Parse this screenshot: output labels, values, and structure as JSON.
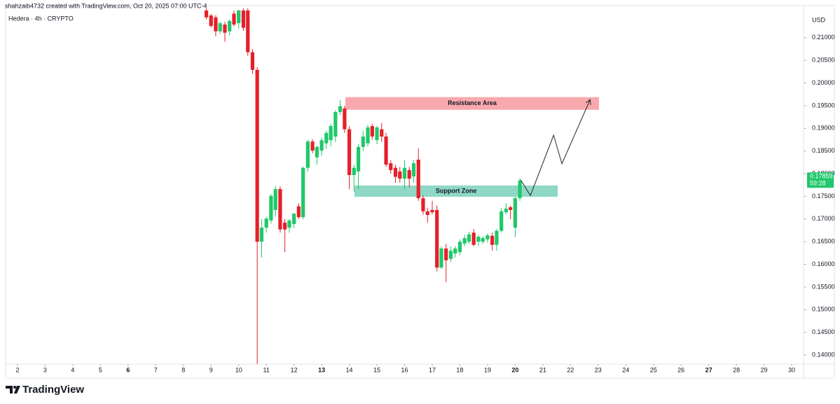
{
  "chart_data": {
    "type": "candlestick",
    "title": "shahzaib4732 created with TradingView.com, Oct 20, 2025 07:00 UTC-4",
    "subtitle": "Hedera · 4h · CRYPTO",
    "currency": "USD",
    "brand": "TradingView",
    "up_color": "#1fc86a",
    "down_color": "#e5202a",
    "x": [
      8.83,
      9.0,
      9.17,
      9.33,
      9.5,
      9.67,
      9.83,
      10.0,
      10.17,
      10.33,
      10.5,
      10.67,
      10.83,
      11.0,
      11.17,
      11.33,
      11.5,
      11.67,
      11.83,
      12.0,
      12.17,
      12.33,
      12.5,
      12.67,
      12.83,
      13.0,
      13.17,
      13.33,
      13.5,
      13.67,
      13.83,
      14.0,
      14.17,
      14.33,
      14.5,
      14.67,
      14.83,
      15.0,
      15.17,
      15.33,
      15.5,
      15.67,
      15.83,
      16.0,
      16.17,
      16.33,
      16.5,
      16.67,
      16.83,
      17.0,
      17.17,
      17.33,
      17.5,
      17.67,
      17.83,
      18.0,
      18.17,
      18.33,
      18.5,
      18.67,
      18.83,
      19.0,
      19.17,
      19.33,
      19.5,
      19.67,
      19.83,
      20.0,
      20.17
    ],
    "open": [
      0.216,
      0.2149,
      0.2145,
      0.2114,
      0.2129,
      0.2114,
      0.2153,
      0.2132,
      0.216,
      0.216,
      0.2068,
      0.2029,
      0.165,
      0.1681,
      0.1697,
      0.172,
      0.1766,
      0.1692,
      0.1681,
      0.1689,
      0.1728,
      0.1704,
      0.1813,
      0.1871,
      0.1836,
      0.1851,
      0.1867,
      0.1874,
      0.1882,
      0.1936,
      0.1944,
      0.1898,
      0.1797,
      0.1805,
      0.1859,
      0.1867,
      0.1905,
      0.1874,
      0.1898,
      0.1882,
      0.1823,
      0.1813,
      0.1805,
      0.1789,
      0.1808,
      0.1794,
      0.1831,
      0.1746,
      0.1717,
      0.172,
      0.172,
      0.1593,
      0.1635,
      0.1612,
      0.1624,
      0.1627,
      0.1646,
      0.165,
      0.167,
      0.165,
      0.165,
      0.1655,
      0.1663,
      0.1643,
      0.1674,
      0.1715,
      0.1726,
      0.1681,
      0.1746
    ],
    "high": [
      0.2165,
      0.2152,
      0.215,
      0.2135,
      0.2135,
      0.214,
      0.216,
      0.2162,
      0.2165,
      0.2165,
      0.2075,
      0.2035,
      0.17,
      0.1705,
      0.1755,
      0.1774,
      0.1772,
      0.17,
      0.17,
      0.1712,
      0.1735,
      0.1815,
      0.1875,
      0.1876,
      0.1862,
      0.188,
      0.1895,
      0.191,
      0.194,
      0.1962,
      0.195,
      0.1905,
      0.182,
      0.1865,
      0.1895,
      0.1908,
      0.191,
      0.1905,
      0.1912,
      0.189,
      0.183,
      0.182,
      0.1815,
      0.183,
      0.1815,
      0.183,
      0.1856,
      0.1752,
      0.1725,
      0.174,
      0.173,
      0.164,
      0.1645,
      0.164,
      0.164,
      0.1655,
      0.1665,
      0.1672,
      0.1678,
      0.1665,
      0.1662,
      0.1668,
      0.167,
      0.1678,
      0.1725,
      0.1735,
      0.173,
      0.175,
      0.179
    ],
    "low": [
      0.214,
      0.2122,
      0.2103,
      0.2108,
      0.2091,
      0.2105,
      0.2125,
      0.212,
      0.2115,
      0.206,
      0.202,
      0.138,
      0.1615,
      0.167,
      0.169,
      0.1705,
      0.167,
      0.1627,
      0.167,
      0.168,
      0.17,
      0.17,
      0.1805,
      0.1845,
      0.182,
      0.184,
      0.1855,
      0.186,
      0.187,
      0.193,
      0.189,
      0.1766,
      0.176,
      0.1766,
      0.185,
      0.186,
      0.1875,
      0.1865,
      0.187,
      0.1815,
      0.18,
      0.178,
      0.178,
      0.1765,
      0.177,
      0.178,
      0.174,
      0.171,
      0.1692,
      0.171,
      0.1585,
      0.159,
      0.1561,
      0.1605,
      0.1615,
      0.162,
      0.164,
      0.1645,
      0.164,
      0.164,
      0.1645,
      0.1648,
      0.163,
      0.163,
      0.167,
      0.171,
      0.17,
      0.166,
      0.174
    ],
    "close": [
      0.2145,
      0.2126,
      0.2114,
      0.2132,
      0.2111,
      0.2137,
      0.2129,
      0.216,
      0.2122,
      0.2068,
      0.2029,
      0.165,
      0.1681,
      0.1701,
      0.1751,
      0.1766,
      0.1677,
      0.1677,
      0.1697,
      0.1712,
      0.1704,
      0.1813,
      0.1871,
      0.1851,
      0.1859,
      0.1874,
      0.189,
      0.1905,
      0.1936,
      0.1949,
      0.1898,
      0.1797,
      0.1813,
      0.1859,
      0.1882,
      0.1902,
      0.1882,
      0.1902,
      0.1882,
      0.182,
      0.1808,
      0.1793,
      0.1789,
      0.1813,
      0.1789,
      0.1823,
      0.1746,
      0.1717,
      0.1709,
      0.1715,
      0.1593,
      0.1635,
      0.1609,
      0.163,
      0.1635,
      0.165,
      0.1658,
      0.1666,
      0.1643,
      0.1661,
      0.1658,
      0.1664,
      0.1643,
      0.1674,
      0.1717,
      0.1723,
      0.172,
      0.1746,
      0.1785
    ],
    "xlim": [
      1.57,
      30.43
    ],
    "xticks": [
      2,
      3,
      4,
      5,
      6,
      7,
      8,
      9,
      10,
      11,
      12,
      13,
      14,
      15,
      16,
      17,
      18,
      19,
      20,
      21,
      22,
      23,
      24,
      25,
      26,
      27,
      28,
      29,
      30
    ],
    "ylim": [
      0.138,
      0.216
    ],
    "yticks": [
      {
        "value": 0.14,
        "label": "0.14000"
      },
      {
        "value": 0.145,
        "label": "0.14500"
      },
      {
        "value": 0.15,
        "label": "0.15000"
      },
      {
        "value": 0.155,
        "label": "0.15500"
      },
      {
        "value": 0.16,
        "label": "0.16000"
      },
      {
        "value": 0.165,
        "label": "0.16500"
      },
      {
        "value": 0.17,
        "label": "0.17000"
      },
      {
        "value": 0.175,
        "label": "0.17500"
      },
      {
        "value": 0.18,
        "label": "0.18000"
      },
      {
        "value": 0.185,
        "label": "0.18500"
      },
      {
        "value": 0.19,
        "label": "0.19000"
      },
      {
        "value": 0.195,
        "label": "0.19500"
      },
      {
        "value": 0.2,
        "label": "0.20000"
      },
      {
        "value": 0.205,
        "label": "0.20500"
      },
      {
        "value": 0.21,
        "label": "0.21000"
      }
    ],
    "zones": [
      {
        "label": "Resistance Area",
        "color": "#f8a9ae",
        "x": [
          13.86,
          23.03
        ],
        "y": [
          0.1941,
          0.1969
        ]
      },
      {
        "label": "Support Zone",
        "color": "#8fd8c6",
        "x": [
          14.19,
          21.54
        ],
        "y": [
          0.1749,
          0.1774
        ]
      }
    ],
    "projection": {
      "x": [
        20.2,
        20.55,
        21.39,
        21.69,
        22.7
      ],
      "y": [
        0.1786,
        0.1752,
        0.1885,
        0.1822,
        0.1962
      ]
    },
    "last_price": 0.17859,
    "countdown": "59:28"
  }
}
